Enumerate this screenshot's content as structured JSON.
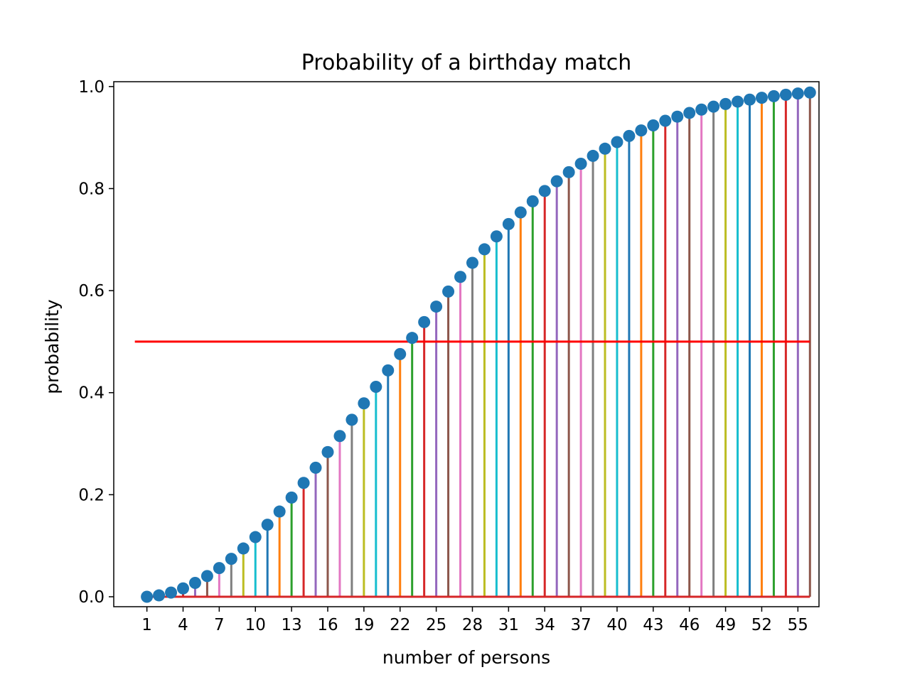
{
  "chart_data": {
    "type": "stem",
    "title": "Probability of a birthday match",
    "xlabel": "number of persons",
    "ylabel": "probability",
    "xlim": [
      -1.75,
      56.75
    ],
    "ylim": [
      -0.0195,
      1.0095
    ],
    "x_ticks": [
      1,
      4,
      7,
      10,
      13,
      16,
      19,
      22,
      25,
      28,
      31,
      34,
      37,
      40,
      43,
      46,
      49,
      52,
      55
    ],
    "y_ticks": [
      0.0,
      0.2,
      0.4,
      0.6,
      0.8,
      1.0
    ],
    "y_tick_labels": [
      "0.0",
      "0.2",
      "0.4",
      "0.6",
      "0.8",
      "1.0"
    ],
    "grid": false,
    "x": [
      1,
      2,
      3,
      4,
      5,
      6,
      7,
      8,
      9,
      10,
      11,
      12,
      13,
      14,
      15,
      16,
      17,
      18,
      19,
      20,
      21,
      22,
      23,
      24,
      25,
      26,
      27,
      28,
      29,
      30,
      31,
      32,
      33,
      34,
      35,
      36,
      37,
      38,
      39,
      40,
      41,
      42,
      43,
      44,
      45,
      46,
      47,
      48,
      49,
      50,
      51,
      52,
      53,
      54,
      55,
      56
    ],
    "values": [
      0.0,
      0.0027,
      0.0082,
      0.0164,
      0.0271,
      0.0405,
      0.0562,
      0.0743,
      0.0946,
      0.1169,
      0.1411,
      0.167,
      0.1944,
      0.2231,
      0.2529,
      0.2836,
      0.315,
      0.3469,
      0.3791,
      0.4114,
      0.4437,
      0.4757,
      0.5073,
      0.5383,
      0.5687,
      0.5982,
      0.6269,
      0.6545,
      0.681,
      0.7063,
      0.7305,
      0.7533,
      0.775,
      0.7953,
      0.8144,
      0.8322,
      0.8487,
      0.8641,
      0.8782,
      0.8912,
      0.9032,
      0.914,
      0.9239,
      0.9329,
      0.941,
      0.9483,
      0.9548,
      0.9606,
      0.9658,
      0.9704,
      0.9744,
      0.978,
      0.9811,
      0.9839,
      0.9863,
      0.9883
    ],
    "marker_color": "#1f77b4",
    "stem_colors": [
      "#1f77b4",
      "#ff7f0e",
      "#2ca02c",
      "#d62728",
      "#9467bd",
      "#8c564b",
      "#e377c2",
      "#7f7f7f",
      "#bcbd22",
      "#17becf"
    ],
    "baseline": {
      "y": 0.0,
      "color": "#d62728"
    },
    "reference_line": {
      "y": 0.5,
      "x_range": [
        0,
        56
      ],
      "color": "#ff0000"
    }
  }
}
